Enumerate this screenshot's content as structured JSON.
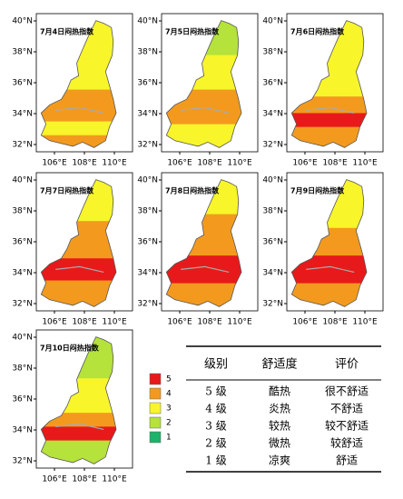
{
  "panels": [
    {
      "title": "7月4日闷热指数"
    },
    {
      "title": "7月5日闷热指数"
    },
    {
      "title": "7月6日闷热指数"
    },
    {
      "title": "7月7日闷热指数"
    },
    {
      "title": "7月8日闷热指数"
    },
    {
      "title": "7月9日闷热指数"
    },
    {
      "title": "7月10日闷热指数"
    }
  ],
  "lat_ticks": [
    "40°N",
    "38°N",
    "36°N",
    "34°N",
    "32°N"
  ],
  "lon_ticks": [
    "106°E",
    "108°E",
    "110°E"
  ],
  "legend": [
    {
      "label": "5",
      "color": "#e8191a"
    },
    {
      "label": "4",
      "color": "#f39a1e"
    },
    {
      "label": "3",
      "color": "#f8f52a"
    },
    {
      "label": "2",
      "color": "#b5e23b"
    },
    {
      "label": "1",
      "color": "#1db36a"
    }
  ],
  "table": {
    "header": [
      "级别",
      "舒适度",
      "评价"
    ],
    "rows": [
      [
        "5 级",
        "酷热",
        "很不舒适"
      ],
      [
        "4 级",
        "炎热",
        "不舒适"
      ],
      [
        "3 级",
        "较热",
        "较不舒适"
      ],
      [
        "2 级",
        "微热",
        "较舒适"
      ],
      [
        "1 级",
        "凉爽",
        "舒适"
      ]
    ]
  }
}
